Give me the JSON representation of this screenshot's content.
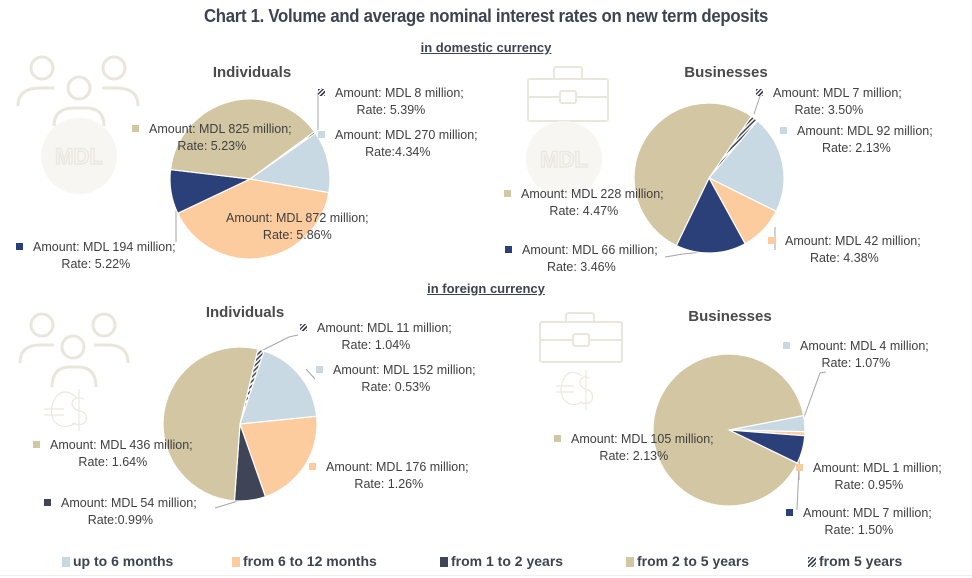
{
  "title": "Chart 1. Volume and average nominal interest rates on new term deposits",
  "sections": {
    "domestic": "in domestic currency",
    "foreign": "in foreign currency"
  },
  "colors": {
    "up_to_6_months": "#c9d9e4",
    "from_6_to_12_months": "#fdcc9e",
    "from_1_to_2_years_domestic": "#2b3f78",
    "from_1_to_2_years_foreign": "#3f4456",
    "from_2_to_5_years": "#d3c6a2",
    "from_5_years": "hatched"
  },
  "legend": [
    {
      "key": "up_to_6_months",
      "label": "up to 6 months",
      "color": "#c9d9e4"
    },
    {
      "key": "from_6_to_12_months",
      "label": "from 6 to 12 months",
      "color": "#fdcc9e"
    },
    {
      "key": "from_1_to_2_years",
      "label": "from 1 to 2 years",
      "color": "#3f4456"
    },
    {
      "key": "from_2_to_5_years",
      "label": "from 2 to 5 years",
      "color": "#d3c6a2"
    },
    {
      "key": "from_5_years",
      "label": "from 5 years",
      "color": "hatched"
    }
  ],
  "chart_data": [
    {
      "type": "pie",
      "title": "Individuals",
      "section": "in domestic currency",
      "icon": "people-mdl-icon",
      "unit": "MDL million",
      "slices": [
        {
          "category": "from 5 years",
          "amount": 8,
          "rate": 5.39,
          "label": "Amount: MDL 8 million;",
          "rate_label": "Rate: 5.39%"
        },
        {
          "category": "up to 6 months",
          "amount": 270,
          "rate": 4.34,
          "label": "Amount: MDL 270 million;",
          "rate_label": "Rate:4.34%"
        },
        {
          "category": "from 6 to 12 months",
          "amount": 872,
          "rate": 5.86,
          "label": "Amount: MDL 872 million;",
          "rate_label": "Rate: 5.86%"
        },
        {
          "category": "from 1 to 2 years",
          "amount": 194,
          "rate": 5.22,
          "label": "Amount: MDL 194 million;",
          "rate_label": "Rate: 5.22%"
        },
        {
          "category": "from 2 to 5 years",
          "amount": 825,
          "rate": 5.23,
          "label": "Amount: MDL 825 million;",
          "rate_label": "Rate: 5.23%"
        }
      ]
    },
    {
      "type": "pie",
      "title": "Businesses",
      "section": "in domestic currency",
      "icon": "briefcase-mdl-icon",
      "unit": "MDL million",
      "slices": [
        {
          "category": "from 5 years",
          "amount": 7,
          "rate": 3.5,
          "label": "Amount: MDL 7 million;",
          "rate_label": "Rate: 3.50%"
        },
        {
          "category": "up to 6 months",
          "amount": 92,
          "rate": 2.13,
          "label": "Amount: MDL 92 million;",
          "rate_label": "Rate: 2.13%"
        },
        {
          "category": "from 6 to 12 months",
          "amount": 42,
          "rate": 4.38,
          "label": "Amount: MDL 42 million;",
          "rate_label": "Rate: 4.38%"
        },
        {
          "category": "from 1 to 2 years",
          "amount": 66,
          "rate": 3.46,
          "label": "Amount: MDL 66 million;",
          "rate_label": "Rate: 3.46%"
        },
        {
          "category": "from 2 to 5 years",
          "amount": 228,
          "rate": 4.47,
          "label": "Amount: MDL 228 million;",
          "rate_label": "Rate: 4.47%"
        }
      ]
    },
    {
      "type": "pie",
      "title": "Individuals",
      "section": "in foreign currency",
      "icon": "people-currency-icon",
      "unit": "MDL million",
      "slices": [
        {
          "category": "from 5 years",
          "amount": 11,
          "rate": 1.04,
          "label": "Amount: MDL 11 million;",
          "rate_label": "Rate: 1.04%"
        },
        {
          "category": "up to 6 months",
          "amount": 152,
          "rate": 0.53,
          "label": "Amount: MDL 152 million;",
          "rate_label": "Rate: 0.53%"
        },
        {
          "category": "from 6 to 12 months",
          "amount": 176,
          "rate": 1.26,
          "label": "Amount: MDL 176 million;",
          "rate_label": "Rate: 1.26%"
        },
        {
          "category": "from 1 to 2 years",
          "amount": 54,
          "rate": 0.99,
          "label": "Amount: MDL 54 million;",
          "rate_label": "Rate:0.99%"
        },
        {
          "category": "from 2 to 5 years",
          "amount": 436,
          "rate": 1.64,
          "label": "Amount: MDL 436 million;",
          "rate_label": "Rate: 1.64%"
        }
      ]
    },
    {
      "type": "pie",
      "title": "Businesses",
      "section": "in foreign currency",
      "icon": "briefcase-currency-icon",
      "unit": "MDL million",
      "slices": [
        {
          "category": "up to 6 months",
          "amount": 4,
          "rate": 1.07,
          "label": "Amount: MDL 4 million;",
          "rate_label": "Rate: 1.07%"
        },
        {
          "category": "from 6 to 12 months",
          "amount": 1,
          "rate": 0.95,
          "label": "Amount: MDL 1 million;",
          "rate_label": "Rate: 0.95%"
        },
        {
          "category": "from 1 to 2 years",
          "amount": 7,
          "rate": 1.5,
          "label": "Amount: MDL 7 million;",
          "rate_label": "Rate: 1.50%"
        },
        {
          "category": "from 2 to 5 years",
          "amount": 105,
          "rate": 2.13,
          "label": "Amount: MDL 105 million;",
          "rate_label": "Rate: 2.13%"
        }
      ]
    }
  ]
}
